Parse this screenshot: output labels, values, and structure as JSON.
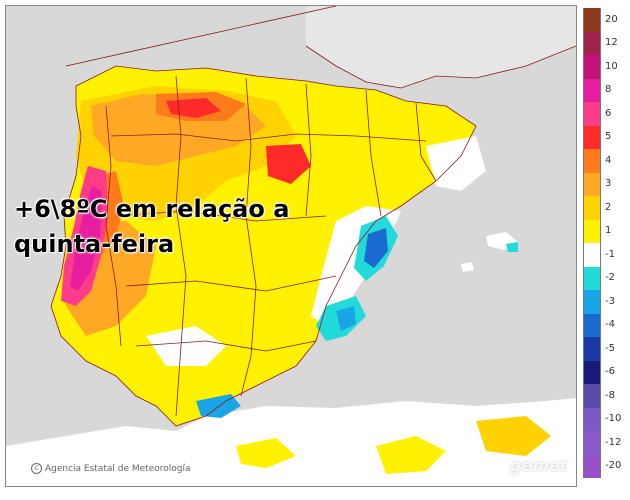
{
  "overlay": {
    "line1": "+6\\8ºC em relação a",
    "line2": "quinta-feira"
  },
  "credit": {
    "text": "Agencia Estatal de Meteorología",
    "icon": "copyright-icon"
  },
  "watermark": {
    "text": "gemet",
    "kind": "logo"
  },
  "colors": {
    "sea": "#d8d8d8",
    "land_neutral": "#ffffff",
    "land_other": "#dedede",
    "boundary": "#8b1a1a"
  },
  "legend": {
    "bins": [
      {
        "label": "20",
        "color": "#8c3a1a"
      },
      {
        "label": "12",
        "color": "#a0224a"
      },
      {
        "label": "10",
        "color": "#c8107a"
      },
      {
        "label": "8",
        "color": "#e81ea0"
      },
      {
        "label": "6",
        "color": "#ff3c8a"
      },
      {
        "label": "5",
        "color": "#ff2a2a"
      },
      {
        "label": "4",
        "color": "#ff7a1a"
      },
      {
        "label": "3",
        "color": "#ffa826"
      },
      {
        "label": "2",
        "color": "#ffd200"
      },
      {
        "label": "1",
        "color": "#fff200"
      },
      {
        "label": "-1",
        "color": "#ffffff"
      },
      {
        "label": "-2",
        "color": "#22dada"
      },
      {
        "label": "-3",
        "color": "#1aa6e6"
      },
      {
        "label": "-4",
        "color": "#1a6ad2"
      },
      {
        "label": "-5",
        "color": "#1a3aa8"
      },
      {
        "label": "-6",
        "color": "#1a1a78"
      },
      {
        "label": "-8",
        "color": "#5a4aaa"
      },
      {
        "label": "-10",
        "color": "#7a5ac2"
      },
      {
        "label": "-12",
        "color": "#8a5aca"
      },
      {
        "label": "-20",
        "color": "#9a50c6"
      }
    ]
  }
}
